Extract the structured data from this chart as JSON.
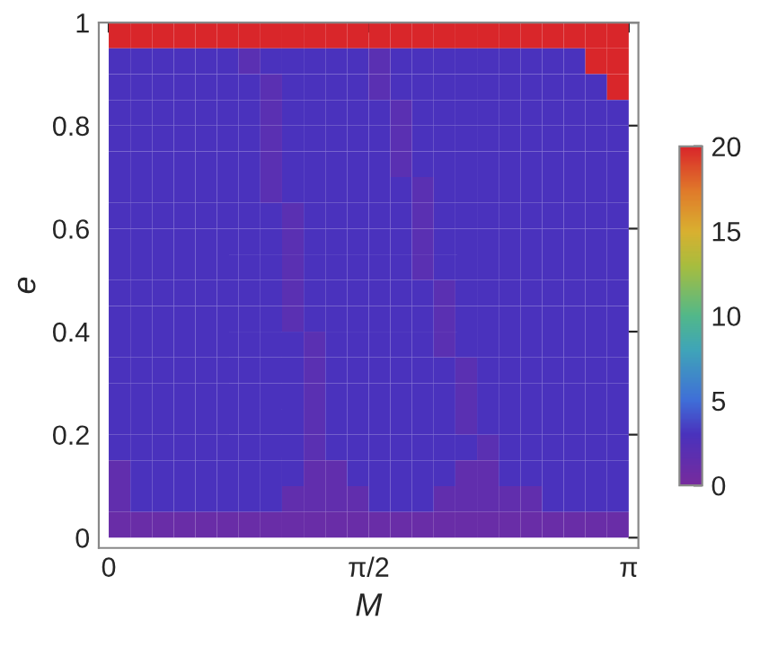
{
  "chart_data": {
    "type": "heatmap",
    "xlabel": "M",
    "ylabel": "e",
    "x": [
      0.0654,
      0.1963,
      0.3272,
      0.4581,
      0.589,
      0.7199,
      0.8508,
      0.9817,
      1.1126,
      1.2435,
      1.3744,
      1.5053,
      1.6362,
      1.7671,
      1.898,
      2.0289,
      2.1598,
      2.2907,
      2.4216,
      2.5525,
      2.6834,
      2.8143,
      2.9452,
      3.0761
    ],
    "y": [
      0.975,
      0.925,
      0.875,
      0.825,
      0.775,
      0.725,
      0.675,
      0.625,
      0.575,
      0.525,
      0.475,
      0.425,
      0.375,
      0.325,
      0.275,
      0.225,
      0.175,
      0.125,
      0.075,
      0.025
    ],
    "xlim": [
      -0.06,
      3.2
    ],
    "xticks": [
      0,
      {
        "value": 1.5708,
        "label": "π/2"
      },
      {
        "value": 3.1416,
        "label": "π"
      }
    ],
    "ylim": [
      -0.02,
      1.0
    ],
    "yticks": [
      0,
      0.2,
      0.4,
      0.6,
      0.8,
      1
    ],
    "clim": [
      0,
      20
    ],
    "cticks": [
      0,
      5,
      10,
      15,
      20
    ],
    "cells": [
      [
        20,
        20,
        20,
        20,
        20,
        20,
        20,
        20,
        20,
        20,
        20,
        20,
        20,
        20,
        20,
        20,
        20,
        20,
        20,
        20,
        20,
        20,
        20,
        20
      ],
      [
        3,
        3,
        3,
        3,
        3,
        3,
        2,
        3,
        3,
        3,
        3,
        3,
        2,
        3,
        3,
        3,
        3,
        3,
        3,
        3,
        3,
        3,
        20,
        20
      ],
      [
        3,
        3,
        3,
        3,
        3,
        3,
        3,
        2,
        3,
        3,
        3,
        3,
        2,
        3,
        3,
        3,
        3,
        3,
        3,
        3,
        3,
        3,
        3,
        20
      ],
      [
        3,
        3,
        3,
        3,
        3,
        3,
        3,
        2,
        3,
        3,
        3,
        3,
        3,
        2,
        3,
        3,
        3,
        3,
        3,
        3,
        3,
        3,
        3,
        3
      ],
      [
        3,
        3,
        3,
        3,
        3,
        3,
        3,
        2,
        3,
        3,
        3,
        3,
        3,
        2,
        3,
        3,
        3,
        3,
        3,
        3,
        3,
        3,
        3,
        3
      ],
      [
        3,
        3,
        3,
        3,
        3,
        3,
        3,
        2,
        3,
        3,
        3,
        3,
        3,
        2,
        3,
        3,
        3,
        3,
        3,
        3,
        3,
        3,
        3,
        3
      ],
      [
        3,
        3,
        3,
        3,
        3,
        3,
        3,
        2,
        3,
        3,
        3,
        3,
        3,
        3,
        2,
        3,
        3,
        3,
        3,
        3,
        3,
        3,
        3,
        3
      ],
      [
        3,
        3,
        3,
        3,
        3,
        3,
        3,
        3,
        2,
        3,
        3,
        3,
        3,
        3,
        2,
        3,
        3,
        3,
        3,
        3,
        3,
        3,
        3,
        3
      ],
      [
        3,
        3,
        3,
        3,
        3,
        3,
        3,
        3,
        2,
        3,
        3,
        3,
        3,
        3,
        2,
        3,
        3,
        3,
        3,
        3,
        3,
        3,
        3,
        3
      ],
      [
        3,
        3,
        3,
        3,
        3,
        3,
        3,
        3,
        2,
        3,
        3,
        3,
        3,
        3,
        2,
        3,
        3,
        3,
        3,
        3,
        3,
        3,
        3,
        3
      ],
      [
        3,
        3,
        3,
        3,
        3,
        3,
        3,
        3,
        2,
        3,
        3,
        3,
        3,
        3,
        3,
        2,
        3,
        3,
        3,
        3,
        3,
        3,
        3,
        3
      ],
      [
        3,
        3,
        3,
        3,
        3,
        3,
        3,
        3,
        2,
        3,
        3,
        3,
        3,
        3,
        3,
        2,
        3,
        3,
        3,
        3,
        3,
        3,
        3,
        3
      ],
      [
        3,
        3,
        3,
        3,
        3,
        3,
        3,
        3,
        3,
        2,
        3,
        3,
        3,
        3,
        3,
        2,
        3,
        3,
        3,
        3,
        3,
        3,
        3,
        3
      ],
      [
        3,
        3,
        3,
        3,
        3,
        3,
        3,
        3,
        3,
        2,
        3,
        3,
        3,
        3,
        3,
        3,
        2,
        3,
        3,
        3,
        3,
        3,
        3,
        3
      ],
      [
        3,
        3,
        3,
        3,
        3,
        3,
        3,
        3,
        3,
        2,
        3,
        3,
        3,
        3,
        3,
        3,
        2,
        3,
        3,
        3,
        3,
        3,
        3,
        3
      ],
      [
        3,
        3,
        3,
        3,
        3,
        3,
        3,
        3,
        3,
        2,
        3,
        3,
        3,
        3,
        3,
        3,
        2,
        3,
        3,
        3,
        3,
        3,
        3,
        3
      ],
      [
        3,
        3,
        3,
        3,
        3,
        3,
        3,
        3,
        3,
        2,
        3,
        3,
        3,
        3,
        3,
        3,
        3,
        2,
        3,
        3,
        3,
        3,
        3,
        3
      ],
      [
        1.5,
        3,
        3,
        3,
        3,
        3,
        3,
        3,
        3,
        1.5,
        1.5,
        3,
        3,
        3,
        3,
        3,
        1.5,
        1.5,
        3,
        3,
        3,
        3,
        3,
        3
      ],
      [
        1.5,
        3,
        3,
        3,
        3,
        3,
        3,
        3,
        1.5,
        1.5,
        1.5,
        1.5,
        3,
        3,
        3,
        1.5,
        1.5,
        1.5,
        1.5,
        1.5,
        3,
        3,
        3,
        3
      ],
      [
        1,
        1,
        1,
        1,
        1,
        1,
        1,
        1,
        1,
        1,
        1,
        1,
        1,
        1,
        1,
        1,
        1,
        1,
        1,
        1,
        1,
        1,
        1,
        1
      ]
    ]
  }
}
